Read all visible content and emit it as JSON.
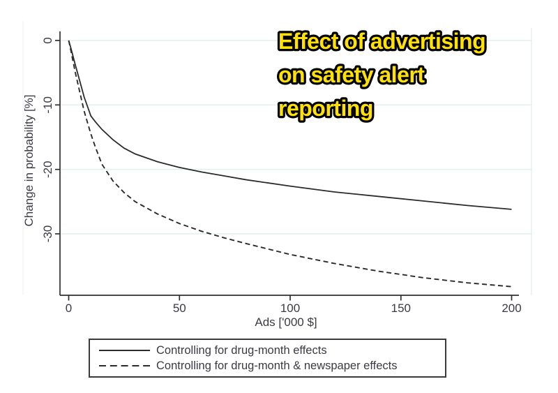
{
  "title": {
    "lines": [
      "Effect of advertising",
      "on safety alert",
      "reporting"
    ],
    "color": "#FFE104",
    "outline_color": "#000000"
  },
  "chart_data": {
    "type": "line",
    "title": "Effect of advertising on safety alert reporting",
    "xlabel": "Ads ['000 $]",
    "ylabel": "Change in probability [%]",
    "xlim": [
      0,
      200
    ],
    "ylim": [
      -39.5,
      1.5
    ],
    "xticks": [
      0,
      50,
      100,
      150,
      200
    ],
    "yticks": [
      0,
      -10,
      -20,
      -30
    ],
    "grid": true,
    "legend_position": "bottom",
    "x": [
      0,
      1,
      2,
      3,
      5,
      7,
      10,
      12,
      15,
      20,
      25,
      30,
      40,
      50,
      60,
      70,
      80,
      100,
      120,
      140,
      160,
      180,
      200
    ],
    "series": [
      {
        "name": "Controlling for drug-month effects",
        "line_style": "solid",
        "color": "#2b2b2b",
        "values": [
          0,
          -1.2,
          -2.5,
          -3.8,
          -6.3,
          -8.8,
          -11.7,
          -12.6,
          -13.8,
          -15.4,
          -16.7,
          -17.6,
          -18.8,
          -19.7,
          -20.4,
          -21.0,
          -21.6,
          -22.6,
          -23.5,
          -24.2,
          -24.9,
          -25.6,
          -26.2
        ]
      },
      {
        "name": "Controlling for drug-month & newspaper effects",
        "line_style": "dashed",
        "color": "#2b2b2b",
        "values": [
          0,
          -1.6,
          -3.3,
          -5.0,
          -8.0,
          -11.0,
          -14.5,
          -16.5,
          -19.2,
          -21.8,
          -23.6,
          -25.0,
          -26.9,
          -28.4,
          -29.6,
          -30.6,
          -31.5,
          -33.2,
          -34.6,
          -35.8,
          -36.8,
          -37.6,
          -38.2
        ]
      }
    ]
  },
  "colors": {
    "background": "#ffffff",
    "grid": "#e3efef",
    "axis": "#2f2f2f",
    "text": "#3a3a44"
  }
}
